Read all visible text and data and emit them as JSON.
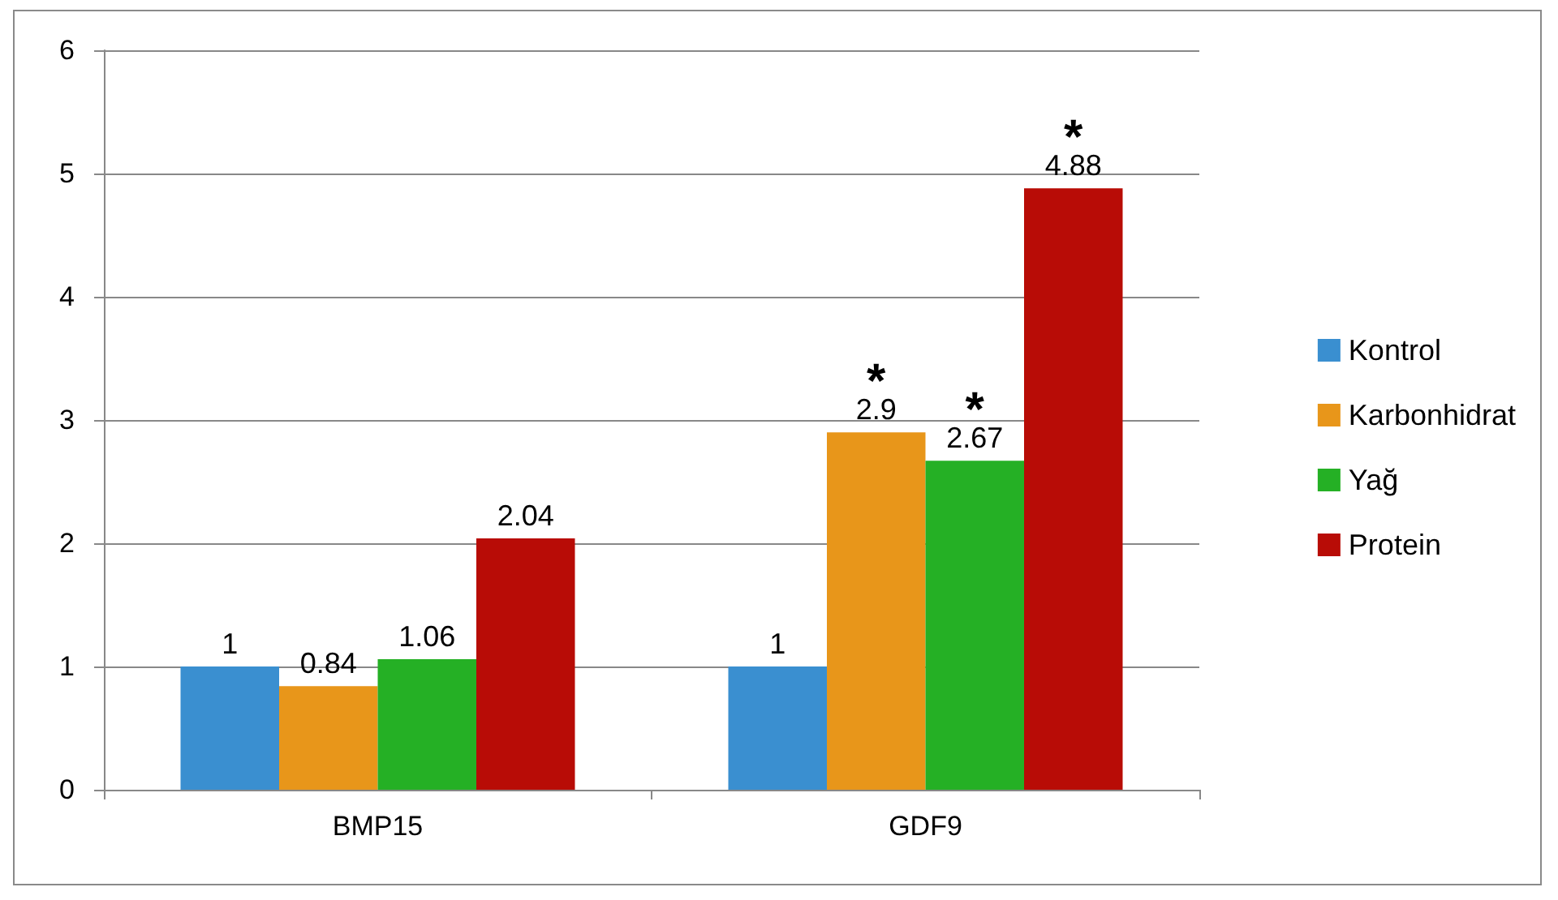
{
  "chart_data": {
    "type": "bar",
    "categories": [
      "BMP15",
      "GDF9"
    ],
    "series": [
      {
        "name": "Kontrol",
        "color": "#3a8fd0",
        "values": [
          1,
          1
        ]
      },
      {
        "name": "Karbonhidrat",
        "color": "#e8961a",
        "values": [
          0.84,
          2.9
        ]
      },
      {
        "name": "Yağ",
        "color": "#25b025",
        "values": [
          1.06,
          2.67
        ]
      },
      {
        "name": "Protein",
        "color": "#b80c06",
        "values": [
          2.04,
          4.88
        ]
      }
    ],
    "ylim": [
      0,
      6
    ],
    "yticks": [
      0,
      1,
      2,
      3,
      4,
      5,
      6
    ],
    "grid": "y",
    "legend": "right",
    "data_labels": true,
    "annotations": [
      {
        "text": "*",
        "x": "GDF9",
        "y": 2.9
      },
      {
        "text": "*",
        "x": "GDF9",
        "y": 2.67
      },
      "*"
    ]
  }
}
